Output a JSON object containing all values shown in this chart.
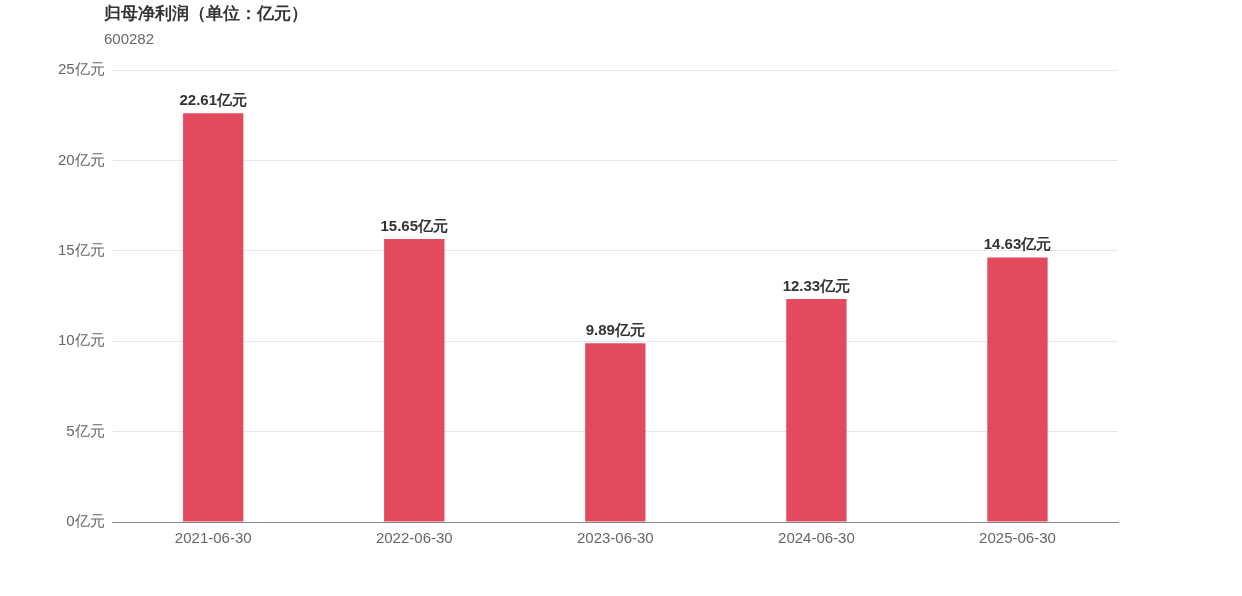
{
  "chart_data": {
    "type": "bar",
    "title": "归母净利润（单位：亿元）",
    "subtitle": "600282",
    "categories": [
      "2021-06-30",
      "2022-06-30",
      "2023-06-30",
      "2024-06-30",
      "2025-06-30"
    ],
    "values": [
      22.61,
      15.65,
      9.89,
      12.33,
      14.63
    ],
    "value_labels": [
      "22.61亿元",
      "15.65亿元",
      "9.89亿元",
      "12.33亿元",
      "14.63亿元"
    ],
    "color": "#e34a5e",
    "ylim": [
      0,
      25
    ],
    "yticks": [
      {
        "value": 0,
        "label": "0亿元"
      },
      {
        "value": 5,
        "label": "5亿元"
      },
      {
        "value": 10,
        "label": "10亿元"
      },
      {
        "value": 15,
        "label": "15亿元"
      },
      {
        "value": 20,
        "label": "20亿元"
      },
      {
        "value": 25,
        "label": "25亿元"
      }
    ],
    "grid": "y",
    "legend": false
  }
}
